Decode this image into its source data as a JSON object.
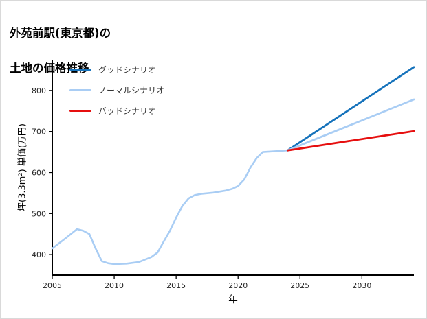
{
  "title": {
    "line1": "外苑前駅(東京都)の",
    "line2": "土地の価格推移"
  },
  "chart_data": {
    "type": "line",
    "title": "外苑前駅(東京都)の土地の価格推移",
    "xlabel": "年",
    "ylabel": "坪(3.3m²) 単価(万円)",
    "xlim": [
      2005,
      2034.2
    ],
    "ylim": [
      350,
      875
    ],
    "xticks": [
      2005,
      2010,
      2015,
      2020,
      2025,
      2030
    ],
    "yticks": [
      400,
      500,
      600,
      700,
      800
    ],
    "grid": false,
    "legend_position": "upper-left-inside",
    "legend": [
      {
        "label": "グッドシナリオ",
        "color": "#1572bb"
      },
      {
        "label": "ノーマルシナリオ",
        "color": "#a9cdf4"
      },
      {
        "label": "バッドシナリオ",
        "color": "#e60f0f"
      }
    ],
    "series": [
      {
        "name": "history",
        "color": "#a9cdf4",
        "width": 2.6,
        "x": [
          2005,
          2006,
          2007,
          2007.5,
          2008,
          2008.5,
          2009,
          2009.5,
          2010,
          2011,
          2012,
          2013,
          2013.5,
          2014,
          2014.5,
          2015,
          2015.5,
          2016,
          2016.5,
          2017,
          2018,
          2019,
          2019.5,
          2020,
          2020.5,
          2021,
          2021.5,
          2022,
          2023,
          2024
        ],
        "values": [
          415,
          438,
          462,
          458,
          450,
          415,
          384,
          379,
          377,
          378,
          382,
          394,
          405,
          432,
          458,
          490,
          518,
          537,
          545,
          548,
          551,
          556,
          560,
          567,
          583,
          612,
          635,
          650,
          652,
          654
        ]
      },
      {
        "name": "good_scenario",
        "color": "#1572bb",
        "width": 2.8,
        "x": [
          2024,
          2034.2
        ],
        "values": [
          654,
          857
        ]
      },
      {
        "name": "normal_scenario",
        "color": "#a9cdf4",
        "width": 2.8,
        "x": [
          2024,
          2034.2
        ],
        "values": [
          654,
          778
        ]
      },
      {
        "name": "bad_scenario",
        "color": "#e60f0f",
        "width": 2.8,
        "x": [
          2024,
          2034.2
        ],
        "values": [
          654,
          701
        ]
      }
    ]
  }
}
